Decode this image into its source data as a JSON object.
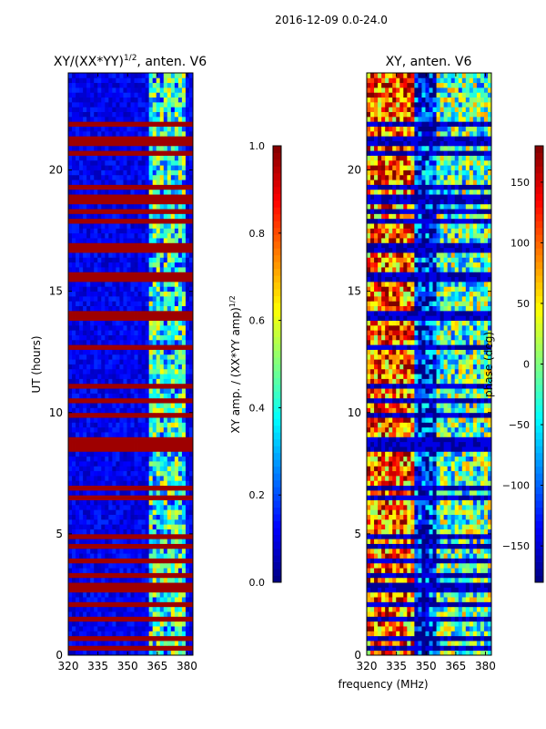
{
  "suptitle": "2016-12-09 0.0-24.0",
  "xlabel_shared": "frequency (MHz)",
  "chart_data": [
    {
      "type": "heatmap",
      "title": "XY/(XX*YY)",
      "title_sup": "1/2",
      "title_suffix": ", anten. V6",
      "xlabel": "",
      "ylabel": "UT (hours)",
      "xlim": [
        320,
        383
      ],
      "ylim": [
        0,
        24
      ],
      "xticks": [
        320,
        335,
        350,
        365,
        380
      ],
      "yticks": [
        0,
        5,
        10,
        15,
        20
      ],
      "colormap": "jet",
      "colorbar": {
        "label": "XY amp. / (XX*YY amp)",
        "label_sup": "1/2",
        "range": [
          0.0,
          1.0
        ],
        "ticks": [
          "0.0",
          "0.2",
          "0.4",
          "0.6",
          "0.8",
          "1.0"
        ]
      },
      "signal_band_mhz": [
        360,
        380
      ],
      "flagged_hours": [
        0.3,
        0.7,
        1.5,
        2.0,
        2.7,
        2.9,
        3.3,
        3.6,
        3.9,
        4.5,
        4.9,
        6.2,
        6.5,
        6.9,
        8.6,
        8.8,
        9.8,
        10.5,
        11.2,
        12.7,
        14.0,
        14.2,
        15.5,
        15.7,
        16.2,
        16.6,
        16.8,
        17.0,
        17.9,
        18.3,
        18.6,
        18.9,
        19.3,
        20.7,
        21.2,
        21.9
      ]
    },
    {
      "type": "heatmap",
      "title": "XY, anten. V6",
      "xlabel": "frequency (MHz)",
      "ylabel": "",
      "xlim": [
        320,
        383
      ],
      "ylim": [
        0,
        24
      ],
      "xticks": [
        320,
        335,
        350,
        365,
        380
      ],
      "yticks": [
        0,
        5,
        10,
        15,
        20
      ],
      "colormap": "jet",
      "colorbar": {
        "label": "phase (deg)",
        "range": [
          -180,
          180
        ],
        "ticks": [
          "−150",
          "−100",
          "−50",
          "0",
          "50",
          "100",
          "150"
        ]
      },
      "flagged_hours": [
        0.3,
        0.7,
        1.5,
        2.0,
        2.7,
        2.9,
        3.3,
        3.6,
        3.9,
        4.5,
        4.9,
        6.2,
        6.5,
        6.9,
        8.6,
        8.8,
        9.8,
        10.5,
        11.2,
        12.7,
        14.0,
        14.2,
        15.5,
        15.7,
        16.2,
        16.6,
        16.8,
        17.0,
        17.9,
        18.3,
        18.6,
        18.9,
        19.3,
        20.7,
        21.2,
        21.9
      ]
    }
  ]
}
